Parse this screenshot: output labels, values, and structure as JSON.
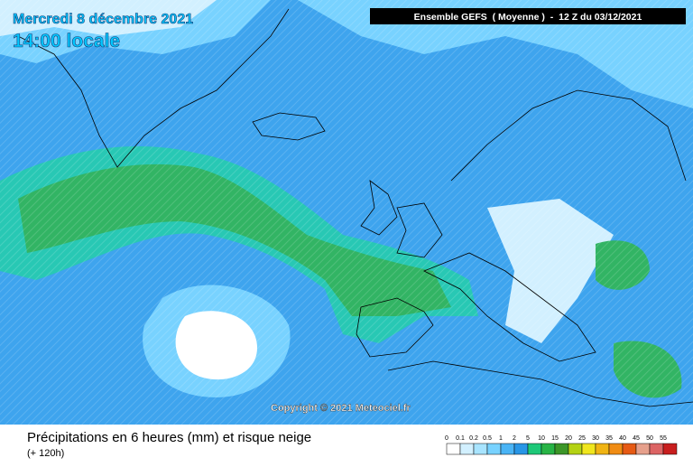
{
  "header": {
    "date": "Mercredi 8 décembre 2021",
    "time": "14:00 locale",
    "model": "Ensemble GEFS  ( Moyenne )  -  12 Z du 03/12/2021"
  },
  "copyright": "Copyright © 2021 Meteociel.fr",
  "footer": {
    "title": "Précipitations en 6 heures (mm) et risque neige",
    "lead": "(+ 120h)"
  },
  "legend": {
    "labels": [
      "0",
      "0.1",
      "0.2",
      "0.5",
      "1",
      "2",
      "5",
      "10",
      "15",
      "20",
      "25",
      "30",
      "35",
      "40",
      "45",
      "50",
      "55"
    ],
    "colors": [
      "#ffffff",
      "#d2f0ff",
      "#a8e4ff",
      "#78d2ff",
      "#4ab4f5",
      "#2896e6",
      "#1ec878",
      "#28b446",
      "#3c9628",
      "#b4d214",
      "#f0e61e",
      "#f0b414",
      "#f08c14",
      "#e65a14",
      "#e6a08c",
      "#dc6464",
      "#c81e1e"
    ]
  }
}
